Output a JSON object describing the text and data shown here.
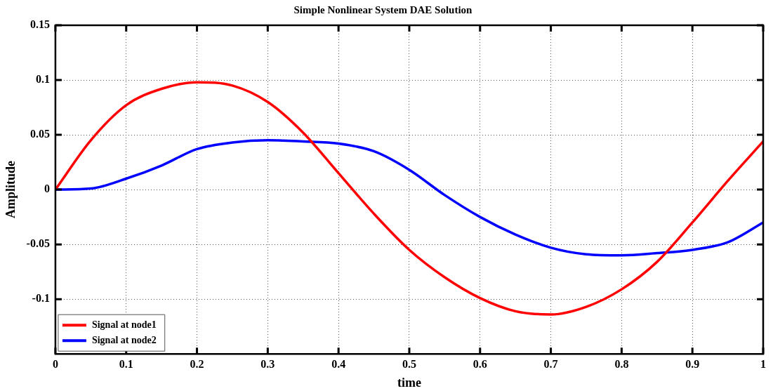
{
  "chart_data": {
    "type": "line",
    "title": "Simple Nonlinear System DAE Solution",
    "xlabel": "time",
    "ylabel": "Amplitude",
    "x": [
      0,
      0.05,
      0.1,
      0.15,
      0.2,
      0.25,
      0.3,
      0.35,
      0.4,
      0.45,
      0.5,
      0.55,
      0.6,
      0.65,
      0.7,
      0.75,
      0.8,
      0.85,
      0.9,
      0.95,
      1.0
    ],
    "series": [
      {
        "name": "Signal at node1",
        "color": "#ff0000",
        "values": [
          0,
          0.045,
          0.077,
          0.092,
          0.098,
          0.095,
          0.08,
          0.052,
          0.015,
          -0.022,
          -0.055,
          -0.08,
          -0.099,
          -0.111,
          -0.114,
          -0.107,
          -0.091,
          -0.066,
          -0.03,
          0.008,
          0.044
        ]
      },
      {
        "name": "Signal at node2",
        "color": "#0000ff",
        "values": [
          0,
          0.001,
          0.01,
          0.022,
          0.037,
          0.043,
          0.045,
          0.044,
          0.042,
          0.035,
          0.018,
          -0.005,
          -0.025,
          -0.041,
          -0.053,
          -0.059,
          -0.06,
          -0.058,
          -0.055,
          -0.048,
          -0.03
        ]
      }
    ],
    "xlim": [
      0,
      1
    ],
    "xticks": [
      0,
      0.1,
      0.2,
      0.3,
      0.4,
      0.5,
      0.6,
      0.7,
      0.8,
      0.9,
      1
    ],
    "ylim": [
      -0.15,
      0.15
    ],
    "yticks": [
      -0.1,
      -0.05,
      0,
      0.05,
      0.1,
      0.15
    ],
    "grid": true,
    "legend": "bottom left",
    "marker": "none",
    "line_style": "solid"
  }
}
